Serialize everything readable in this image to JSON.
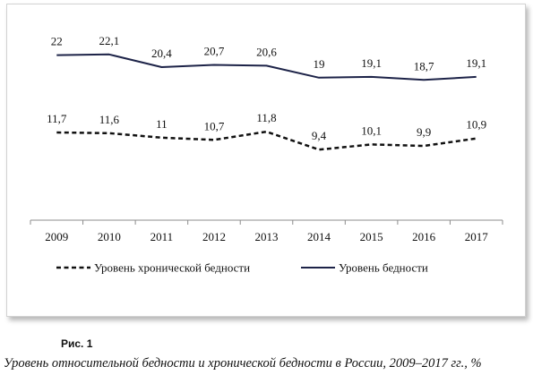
{
  "colors": {
    "poverty": "#1d2348",
    "chronic": "#111111",
    "axis": "#8c8c8c"
  },
  "chart_data": {
    "type": "line",
    "categories": [
      "2009",
      "2010",
      "2011",
      "2012",
      "2013",
      "2014",
      "2015",
      "2016",
      "2017"
    ],
    "ylim": [
      0,
      25
    ],
    "grid": false,
    "legend_position": "bottom",
    "series": [
      {
        "name": "Уровень бедности",
        "style": "solid",
        "values": [
          22,
          22.1,
          20.4,
          20.7,
          20.6,
          19,
          19.1,
          18.7,
          19.1
        ],
        "labels": [
          "22",
          "22,1",
          "20,4",
          "20,7",
          "20,6",
          "19",
          "19,1",
          "18,7",
          "19,1"
        ]
      },
      {
        "name": "Уровень хронической бедности",
        "style": "dashed",
        "values": [
          11.7,
          11.6,
          11,
          10.7,
          11.8,
          9.4,
          10.1,
          9.9,
          10.9
        ],
        "labels": [
          "11,7",
          "11,6",
          "11",
          "10,7",
          "11,8",
          "9,4",
          "10,1",
          "9,9",
          "10,9"
        ]
      }
    ],
    "legend_order": [
      "Уровень хронической бедности",
      "Уровень бедности"
    ]
  },
  "figure": {
    "number": "Рис. 1",
    "caption": "Уровень относительной бедности и хронической бедности в России, 2009–2017 гг., %"
  }
}
